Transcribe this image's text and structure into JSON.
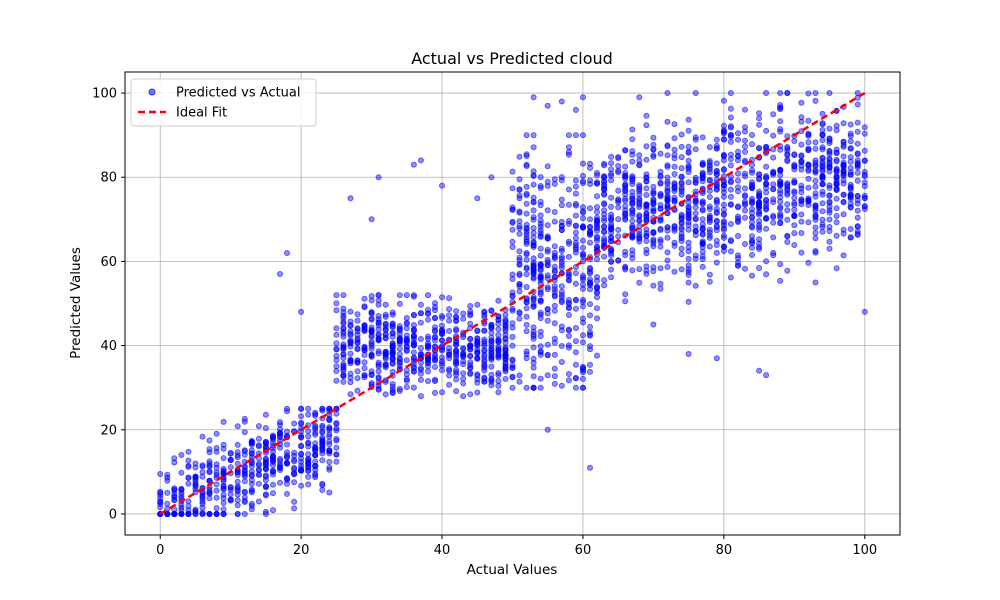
{
  "chart_data": {
    "type": "scatter",
    "title": "Actual vs Predicted cloud",
    "xlabel": "Actual Values",
    "ylabel": "Predicted Values",
    "xlim": [
      -5,
      105
    ],
    "ylim": [
      -5,
      105
    ],
    "xticks": [
      0,
      20,
      40,
      60,
      80,
      100
    ],
    "yticks": [
      0,
      20,
      40,
      60,
      80,
      100
    ],
    "grid": true,
    "legend_position": "upper-left",
    "colors": {
      "scatter": "#0000ff",
      "ideal": "#ff0000"
    },
    "series": [
      {
        "name": "Predicted vs Actual",
        "kind": "scatter",
        "note": "dense point cloud in bands (actual -> typical predicted)",
        "bands": [
          {
            "actual": [
              0,
              25
            ],
            "predicted_line": [
              0,
              20
            ],
            "predicted_spread": [
              0,
              25
            ]
          },
          {
            "actual": [
              25,
              50
            ],
            "predicted_center": 40,
            "predicted_spread": [
              28,
              52
            ]
          },
          {
            "actual": [
              50,
              62
            ],
            "predicted_center": 58,
            "predicted_spread": [
              30,
              90
            ]
          },
          {
            "actual": [
              62,
              100
            ],
            "predicted_line": [
              70,
              82
            ],
            "predicted_spread": [
              48,
              100
            ]
          }
        ],
        "outliers": [
          [
            18,
            62
          ],
          [
            17,
            57
          ],
          [
            20,
            48
          ],
          [
            27,
            75
          ],
          [
            30,
            70
          ],
          [
            31,
            80
          ],
          [
            36,
            83
          ],
          [
            37,
            84
          ],
          [
            40,
            78
          ],
          [
            45,
            75
          ],
          [
            47,
            80
          ],
          [
            53,
            99
          ],
          [
            55,
            97
          ],
          [
            57,
            98
          ],
          [
            59,
            96
          ],
          [
            60,
            99
          ],
          [
            55,
            20
          ],
          [
            61,
            11
          ],
          [
            68,
            99
          ],
          [
            72,
            100
          ],
          [
            70,
            45
          ],
          [
            75,
            38
          ],
          [
            79,
            37
          ],
          [
            85,
            34
          ],
          [
            86,
            33
          ],
          [
            93,
            55
          ],
          [
            100,
            48
          ],
          [
            95,
            63
          ]
        ]
      },
      {
        "name": "Ideal Fit",
        "kind": "line",
        "style": "dashed",
        "x": [
          0,
          100
        ],
        "y": [
          0,
          100
        ]
      }
    ]
  }
}
